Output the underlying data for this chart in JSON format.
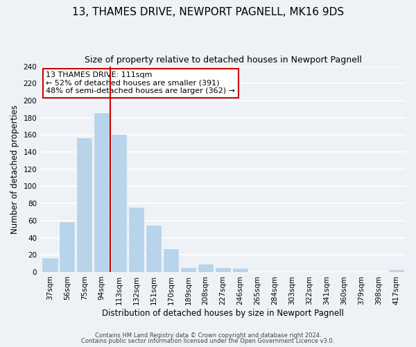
{
  "title": "13, THAMES DRIVE, NEWPORT PAGNELL, MK16 9DS",
  "subtitle": "Size of property relative to detached houses in Newport Pagnell",
  "xlabel": "Distribution of detached houses by size in Newport Pagnell",
  "ylabel": "Number of detached properties",
  "bar_labels": [
    "37sqm",
    "56sqm",
    "75sqm",
    "94sqm",
    "113sqm",
    "132sqm",
    "151sqm",
    "170sqm",
    "189sqm",
    "208sqm",
    "227sqm",
    "246sqm",
    "265sqm",
    "284sqm",
    "303sqm",
    "322sqm",
    "341sqm",
    "360sqm",
    "379sqm",
    "398sqm",
    "417sqm"
  ],
  "bar_values": [
    16,
    58,
    156,
    185,
    160,
    75,
    54,
    27,
    5,
    9,
    5,
    4,
    0,
    0,
    0,
    0,
    0,
    0,
    0,
    0,
    2
  ],
  "bar_color": "#b8d4ea",
  "bar_edge_color": "#b8d4ea",
  "vline_index": 4,
  "vline_color": "#cc0000",
  "ylim": [
    0,
    240
  ],
  "yticks": [
    0,
    20,
    40,
    60,
    80,
    100,
    120,
    140,
    160,
    180,
    200,
    220,
    240
  ],
  "annotation_title": "13 THAMES DRIVE: 111sqm",
  "annotation_line1": "← 52% of detached houses are smaller (391)",
  "annotation_line2": "48% of semi-detached houses are larger (362) →",
  "annotation_box_color": "white",
  "annotation_box_edge": "#cc0000",
  "footer1": "Contains HM Land Registry data © Crown copyright and database right 2024.",
  "footer2": "Contains public sector information licensed under the Open Government Licence v3.0.",
  "background_color": "#eef2f7",
  "grid_color": "white",
  "title_fontsize": 11,
  "subtitle_fontsize": 9,
  "axis_label_fontsize": 8.5,
  "tick_fontsize": 7.5,
  "footer_fontsize": 6.0
}
